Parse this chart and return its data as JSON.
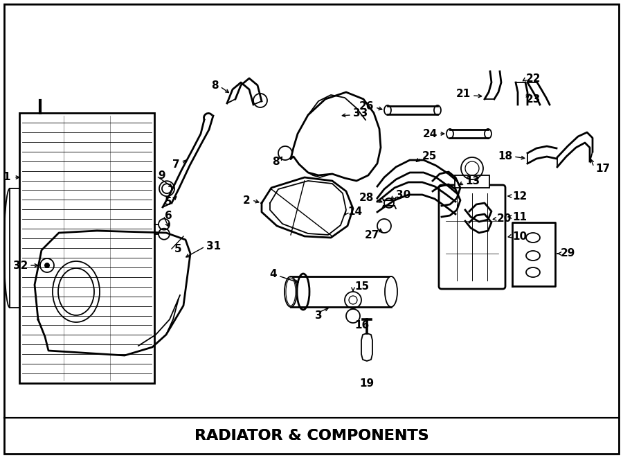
{
  "title": "RADIATOR & COMPONENTS",
  "background_color": "#ffffff",
  "line_color": "#000000",
  "fig_width": 9.0,
  "fig_height": 6.61,
  "dpi": 100
}
